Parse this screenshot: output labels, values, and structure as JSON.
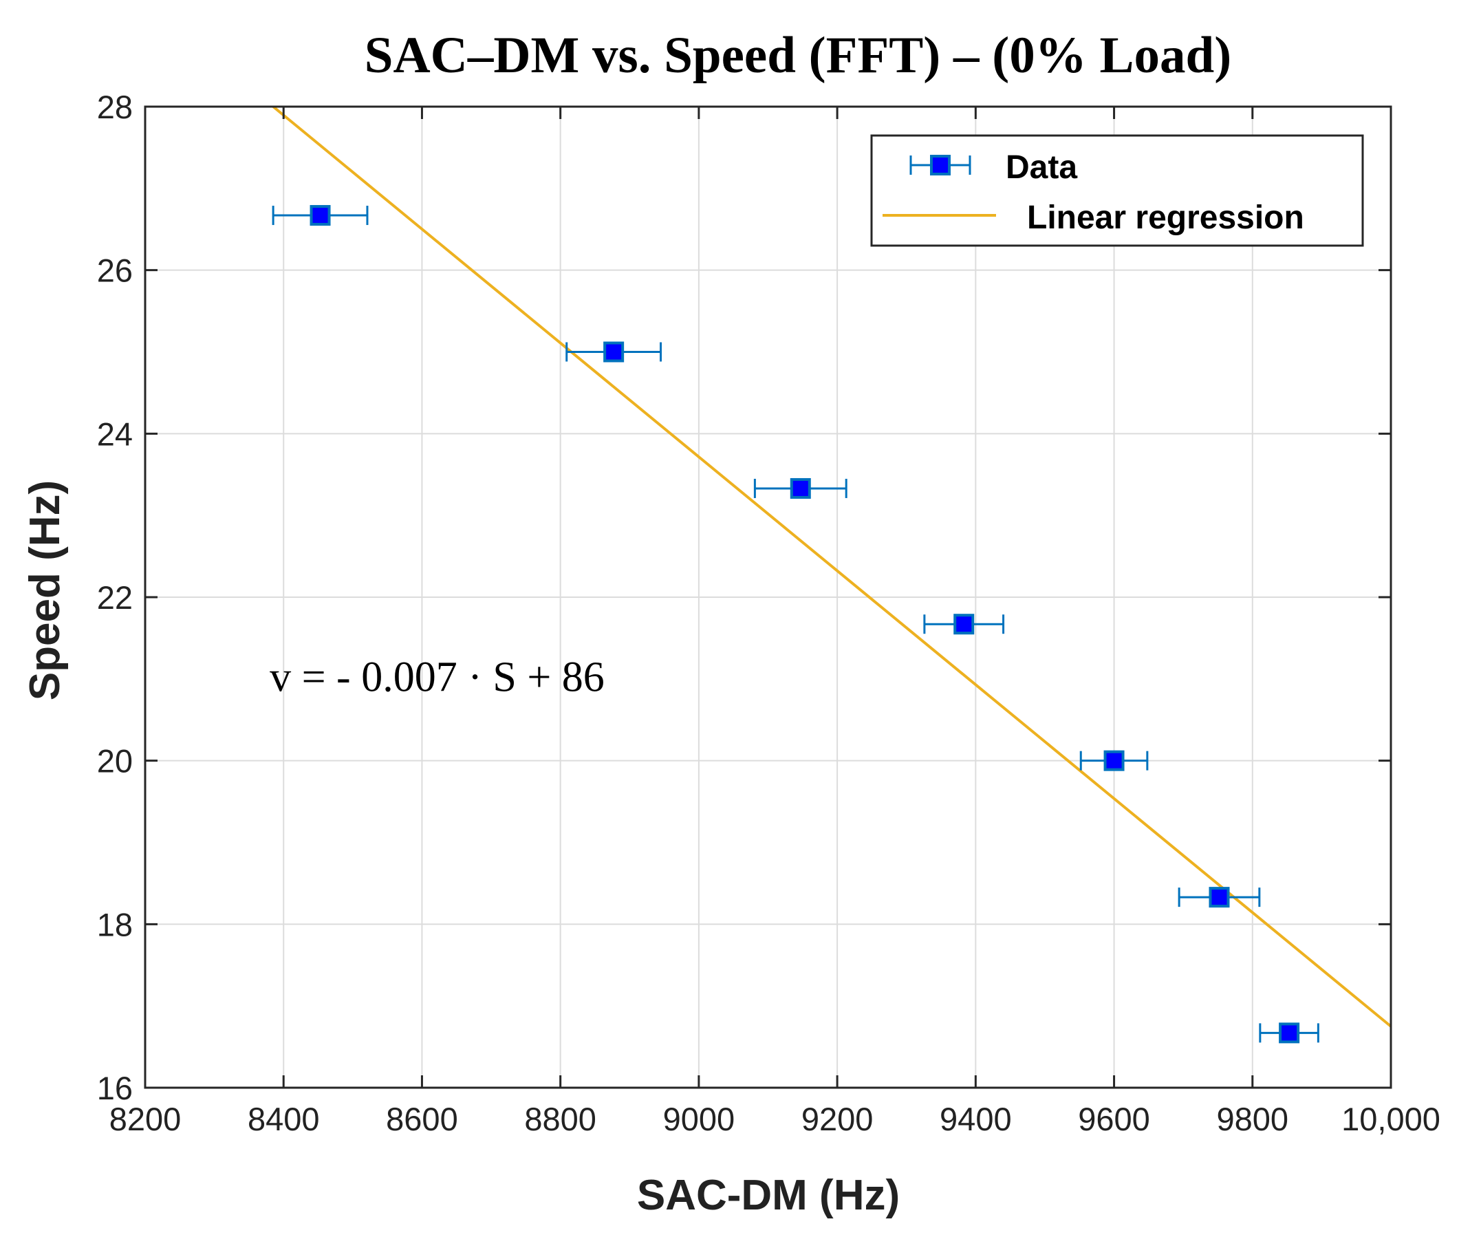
{
  "chart_data": {
    "type": "scatter",
    "title": "SAC–DM vs. Speed (FFT) – (0% Load)",
    "xlabel": "SAC-DM (Hz)",
    "ylabel": "Speed (Hz)",
    "xlim": [
      8200,
      10000
    ],
    "ylim": [
      16,
      28
    ],
    "xticks": [
      8200,
      8400,
      8600,
      8800,
      9000,
      9200,
      9400,
      9600,
      9800,
      10000
    ],
    "xtick_labels": [
      "8200",
      "8400",
      "8600",
      "8800",
      "9000",
      "9200",
      "9400",
      "9600",
      "9800",
      "10,000"
    ],
    "yticks": [
      16,
      18,
      20,
      22,
      24,
      26,
      28
    ],
    "ytick_labels": [
      "16",
      "18",
      "20",
      "22",
      "24",
      "26",
      "28"
    ],
    "grid": true,
    "legend_position": "top-right",
    "series": [
      {
        "name": "Data",
        "kind": "errorbar-x",
        "color": "#0000ff",
        "edge_color": "#0072bd",
        "points": [
          {
            "x": 8453,
            "y": 26.67,
            "xerr": 68
          },
          {
            "x": 8877,
            "y": 25.0,
            "xerr": 68
          },
          {
            "x": 9147,
            "y": 23.33,
            "xerr": 66
          },
          {
            "x": 9383,
            "y": 21.67,
            "xerr": 57
          },
          {
            "x": 9600,
            "y": 20.0,
            "xerr": 48
          },
          {
            "x": 9752,
            "y": 18.33,
            "xerr": 58
          },
          {
            "x": 9853,
            "y": 16.67,
            "xerr": 42
          }
        ]
      },
      {
        "name": "Linear regression",
        "kind": "line",
        "color": "#edb120",
        "x": [
          8385,
          10000
        ],
        "y": [
          28.0,
          16.75
        ]
      }
    ],
    "legend_entries": [
      "Data",
      "Linear regression"
    ],
    "annotations": [
      {
        "text": "v = - 0.007 · S + 86",
        "x": 8380,
        "y": 20.85
      }
    ]
  }
}
